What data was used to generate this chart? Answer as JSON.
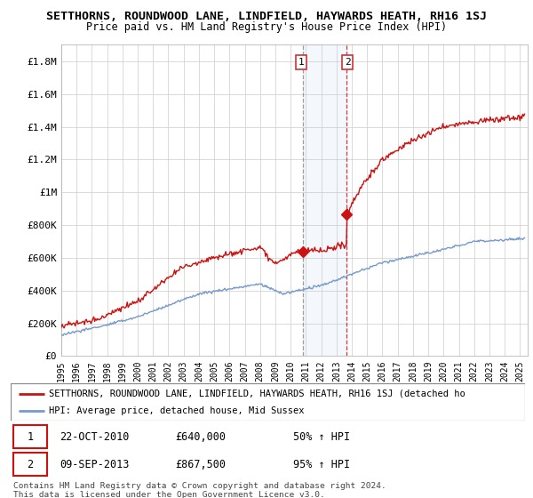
{
  "title": "SETTHORNS, ROUNDWOOD LANE, LINDFIELD, HAYWARDS HEATH, RH16 1SJ",
  "subtitle": "Price paid vs. HM Land Registry's House Price Index (HPI)",
  "ylabel_ticks": [
    "£0",
    "£200K",
    "£400K",
    "£600K",
    "£800K",
    "£1M",
    "£1.2M",
    "£1.4M",
    "£1.6M",
    "£1.8M"
  ],
  "ylabel_values": [
    0,
    200000,
    400000,
    600000,
    800000,
    1000000,
    1200000,
    1400000,
    1600000,
    1800000
  ],
  "ylim": [
    0,
    1900000
  ],
  "xlim_start": 1995,
  "xlim_end": 2025.5,
  "hpi_color": "#7799cc",
  "price_color": "#cc1111",
  "marker1_x": 2010.8,
  "marker1_y": 640000,
  "marker2_x": 2013.67,
  "marker2_y": 867500,
  "shade_x1": 2010.8,
  "shade_x2": 2013.67,
  "legend_label_red": "SETTHORNS, ROUNDWOOD LANE, LINDFIELD, HAYWARDS HEATH, RH16 1SJ (detached ho",
  "legend_label_blue": "HPI: Average price, detached house, Mid Sussex",
  "table_rows": [
    [
      "1",
      "22-OCT-2010",
      "£640,000",
      "50% ↑ HPI"
    ],
    [
      "2",
      "09-SEP-2013",
      "£867,500",
      "95% ↑ HPI"
    ]
  ],
  "footer": "Contains HM Land Registry data © Crown copyright and database right 2024.\nThis data is licensed under the Open Government Licence v3.0.",
  "background_color": "#ffffff",
  "grid_color": "#cccccc"
}
